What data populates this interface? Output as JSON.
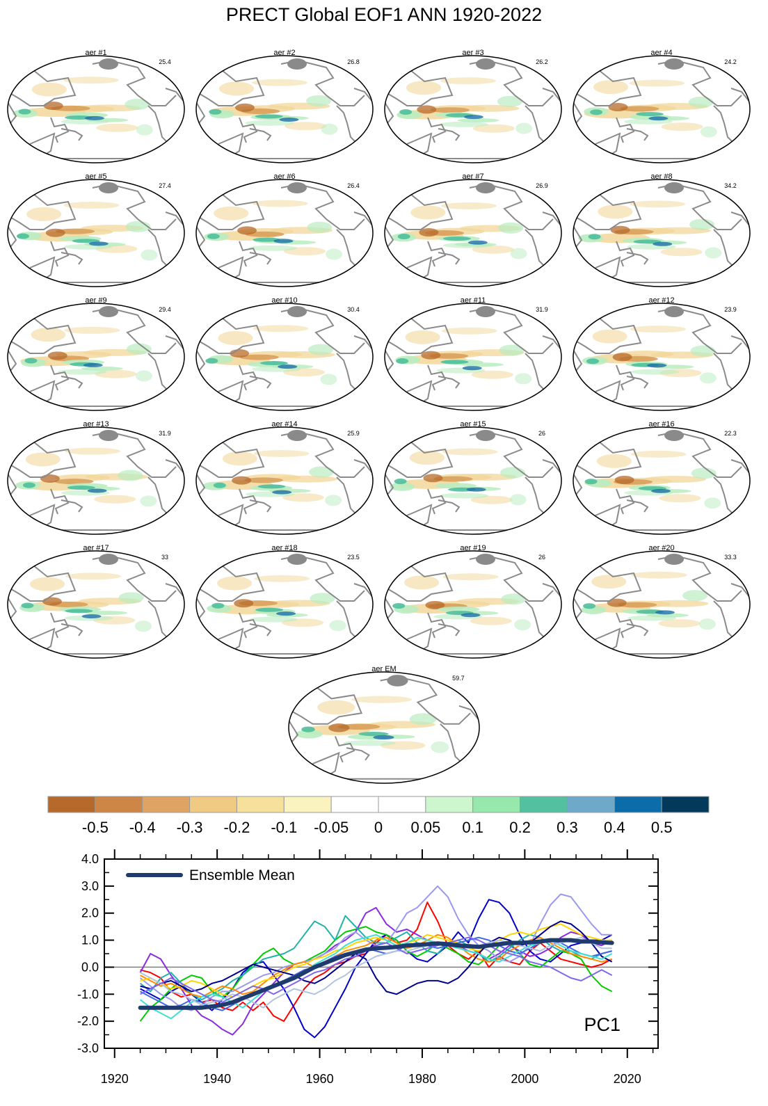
{
  "figure": {
    "title": "PRECT Global EOF1 ANN 1920-2022"
  },
  "colors": {
    "land": "#8a8a8a",
    "neg_strong": "#b7692a",
    "neg_mid": "#d9a05c",
    "neg_weak": "#f2d79a",
    "pos_weak": "#b9ecc0",
    "pos_mid": "#4fbf9c",
    "pos_strong": "#1d6fa8",
    "ensemble_mean": "#1e3a6e"
  },
  "maps": [
    {
      "label": "aer #1",
      "pct": "25.4"
    },
    {
      "label": "aer #2",
      "pct": "26.8"
    },
    {
      "label": "aer #3",
      "pct": "26.2"
    },
    {
      "label": "aer #4",
      "pct": "24.2"
    },
    {
      "label": "aer #5",
      "pct": "27.4"
    },
    {
      "label": "aer #6",
      "pct": "26.4"
    },
    {
      "label": "aer #7",
      "pct": "26.9"
    },
    {
      "label": "aer #8",
      "pct": "34.2"
    },
    {
      "label": "aer #9",
      "pct": "29.4"
    },
    {
      "label": "aer #10",
      "pct": "30.4"
    },
    {
      "label": "aer #11",
      "pct": "31.9"
    },
    {
      "label": "aer #12",
      "pct": "23.9"
    },
    {
      "label": "aer #13",
      "pct": "31.9"
    },
    {
      "label": "aer #14",
      "pct": "25.9"
    },
    {
      "label": "aer #15",
      "pct": "26"
    },
    {
      "label": "aer #16",
      "pct": "22.3"
    },
    {
      "label": "aer #17",
      "pct": "33"
    },
    {
      "label": "aer #18",
      "pct": "23.5"
    },
    {
      "label": "aer #19",
      "pct": "26"
    },
    {
      "label": "aer #20",
      "pct": "33.3"
    },
    {
      "label": "aer EM",
      "pct": "59.7"
    }
  ],
  "colorbar": {
    "colors": [
      "#b5692a",
      "#cd8645",
      "#dfa463",
      "#f0c983",
      "#f5e09c",
      "#faf2bf",
      "#ffffff",
      "#ffffff",
      "#cdf6cf",
      "#97e8ad",
      "#53c09f",
      "#6fa9c9",
      "#0c6ca9",
      "#033a5c"
    ],
    "labels": [
      "-0.5",
      "-0.4",
      "-0.3",
      "-0.2",
      "-0.1",
      "-0.05",
      "0",
      "0.05",
      "0.1",
      "0.2",
      "0.3",
      "0.4",
      "0.5"
    ]
  },
  "chart_data": {
    "type": "line",
    "title": "",
    "xlabel": "",
    "ylabel": "",
    "annotation": "PC1",
    "xlim": [
      1918,
      2026
    ],
    "ylim": [
      -3.0,
      4.0
    ],
    "x_ticks": [
      "1920",
      "1940",
      "1960",
      "1980",
      "2000",
      "2020"
    ],
    "y_ticks": [
      "-3.0",
      "-2.0",
      "-1.0",
      "0.0",
      "1.0",
      "2.0",
      "3.0",
      "4.0"
    ],
    "legend": {
      "placement": "top-left",
      "entries": [
        "Ensemble Mean"
      ]
    },
    "x": [
      1925,
      1927,
      1929,
      1931,
      1933,
      1935,
      1937,
      1939,
      1941,
      1943,
      1945,
      1947,
      1949,
      1951,
      1953,
      1955,
      1957,
      1959,
      1961,
      1963,
      1965,
      1967,
      1969,
      1971,
      1973,
      1975,
      1977,
      1979,
      1981,
      1983,
      1985,
      1987,
      1989,
      1991,
      1993,
      1995,
      1997,
      1999,
      2001,
      2003,
      2005,
      2007,
      2009,
      2011,
      2013,
      2015,
      2017
    ],
    "series": [
      {
        "name": "Ensemble Mean",
        "color": "#1e3a6e",
        "values": [
          -1.5,
          -1.5,
          -1.5,
          -1.5,
          -1.5,
          -1.5,
          -1.5,
          -1.45,
          -1.4,
          -1.3,
          -1.15,
          -1.0,
          -0.85,
          -0.7,
          -0.55,
          -0.4,
          -0.2,
          0.0,
          0.15,
          0.3,
          0.45,
          0.55,
          0.65,
          0.7,
          0.72,
          0.75,
          0.8,
          0.82,
          0.85,
          0.88,
          0.85,
          0.8,
          0.78,
          0.75,
          0.8,
          0.85,
          0.9,
          0.9,
          0.92,
          0.95,
          1.0,
          1.0,
          1.0,
          0.95,
          0.95,
          0.92,
          0.9
        ]
      },
      {
        "color": "#ff0000",
        "values": [
          -0.1,
          -0.2,
          -0.4,
          -0.9,
          -1.1,
          -1.0,
          -1.3,
          -1.2,
          -1.5,
          -1.6,
          -1.3,
          -1.6,
          -1.3,
          -1.8,
          -2.0,
          -1.4,
          -0.8,
          -0.4,
          -0.2,
          0.1,
          0.2,
          0.4,
          0.5,
          0.9,
          1.2,
          0.9,
          1.0,
          1.4,
          2.4,
          1.7,
          0.8,
          0.5,
          0.3,
          0.6,
          0.0,
          0.4,
          0.2,
          0.1,
          0.6,
          0.9,
          0.6,
          0.3,
          0.2,
          0.1,
          0.0,
          0.1,
          0.3
        ]
      },
      {
        "color": "#0000cc",
        "values": [
          -0.8,
          -1.0,
          -1.2,
          -0.9,
          -0.7,
          -1.0,
          -1.3,
          -1.6,
          -1.2,
          -0.8,
          -0.2,
          0.1,
          0.2,
          -0.3,
          -0.8,
          -1.5,
          -2.3,
          -2.6,
          -2.2,
          -1.5,
          -0.8,
          0.0,
          0.5,
          1.0,
          1.2,
          1.0,
          0.6,
          0.3,
          0.2,
          0.5,
          0.8,
          1.3,
          0.9,
          1.8,
          2.5,
          2.4,
          2.0,
          1.2,
          0.6,
          0.3,
          0.2,
          0.5,
          0.8,
          0.9,
          1.0,
          1.0,
          1.2
        ]
      },
      {
        "color": "#00cc00",
        "values": [
          -2.0,
          -1.5,
          -1.2,
          -0.8,
          -0.5,
          -0.3,
          -0.4,
          -0.9,
          -1.1,
          -0.8,
          -0.3,
          0.1,
          0.5,
          0.7,
          0.3,
          0.1,
          0.2,
          0.4,
          0.6,
          1.0,
          1.3,
          1.4,
          1.5,
          1.3,
          1.2,
          1.0,
          0.6,
          0.4,
          0.6,
          0.9,
          0.7,
          0.5,
          0.2,
          0.1,
          0.4,
          0.8,
          0.9,
          0.5,
          0.1,
          0.0,
          0.3,
          0.6,
          0.5,
          0.3,
          -0.3,
          -0.7,
          -0.9
        ]
      },
      {
        "color": "#8a2be2",
        "values": [
          -0.2,
          0.5,
          0.3,
          -0.3,
          -0.8,
          -1.4,
          -1.8,
          -2.0,
          -2.3,
          -2.5,
          -2.1,
          -1.4,
          -1.0,
          -0.6,
          -0.2,
          0.1,
          0.2,
          0.3,
          0.5,
          0.8,
          1.0,
          1.3,
          2.0,
          2.2,
          1.6,
          1.3,
          1.4,
          1.2,
          1.0,
          0.9,
          0.9,
          0.8,
          0.6,
          0.5,
          0.3,
          0.5,
          0.8,
          0.6,
          0.4,
          0.5,
          0.7,
          1.1,
          1.3,
          1.2,
          0.9,
          0.8,
          1.0
        ]
      },
      {
        "color": "#20b2aa",
        "values": [
          -0.6,
          -0.9,
          -0.4,
          -0.2,
          -0.6,
          -1.0,
          -1.2,
          -1.0,
          -0.8,
          -0.5,
          -0.3,
          0.0,
          0.3,
          0.4,
          0.5,
          0.7,
          1.2,
          1.7,
          1.5,
          1.0,
          1.9,
          1.5,
          1.1,
          0.9,
          0.9,
          1.1,
          1.3,
          0.9,
          0.6,
          0.5,
          0.9,
          1.0,
          0.8,
          0.5,
          0.2,
          0.4,
          0.7,
          1.0,
          1.2,
          1.1,
          0.8,
          0.6,
          0.6,
          0.4,
          0.3,
          0.5,
          0.6
        ]
      },
      {
        "color": "#9999ee",
        "values": [
          -0.4,
          -0.7,
          -1.0,
          -1.2,
          -1.5,
          -1.6,
          -1.4,
          -1.1,
          -0.9,
          -0.9,
          -0.7,
          -0.5,
          -0.3,
          -0.2,
          0.0,
          0.1,
          0.2,
          0.3,
          0.5,
          0.7,
          1.1,
          1.3,
          1.0,
          0.8,
          0.9,
          1.4,
          2.0,
          2.2,
          2.6,
          3.0,
          2.6,
          1.8,
          1.2,
          0.8,
          0.6,
          0.3,
          0.2,
          0.4,
          0.8,
          1.6,
          2.3,
          2.7,
          2.6,
          2.1,
          1.6,
          1.2,
          1.2
        ]
      },
      {
        "color": "#ff8c00",
        "values": [
          -0.3,
          -0.5,
          -0.7,
          -0.6,
          -0.8,
          -1.0,
          -1.1,
          -0.9,
          -0.7,
          -0.8,
          -1.0,
          -0.9,
          -0.6,
          -0.3,
          -0.1,
          0.1,
          0.2,
          0.0,
          0.2,
          0.4,
          0.6,
          0.7,
          0.8,
          1.0,
          1.1,
          0.9,
          0.7,
          0.8,
          1.0,
          1.2,
          1.1,
          0.8,
          0.5,
          0.3,
          0.2,
          0.3,
          0.6,
          0.8,
          1.0,
          1.1,
          0.9,
          0.7,
          0.5,
          0.4,
          0.3,
          0.2,
          0.3
        ]
      },
      {
        "color": "#ffd700",
        "values": [
          -0.5,
          -0.4,
          -0.6,
          -0.8,
          -0.7,
          -0.5,
          -0.6,
          -0.8,
          -1.0,
          -1.1,
          -0.9,
          -0.7,
          -0.5,
          -0.4,
          -0.2,
          0.0,
          0.1,
          0.3,
          0.4,
          0.6,
          0.7,
          0.9,
          1.0,
          1.1,
          1.0,
          0.8,
          0.9,
          1.0,
          1.2,
          1.1,
          1.0,
          0.9,
          0.7,
          0.6,
          0.8,
          1.0,
          1.2,
          1.3,
          1.2,
          1.4,
          1.5,
          1.6,
          1.4,
          1.2,
          1.1,
          1.0,
          1.0
        ]
      },
      {
        "color": "#00008b",
        "values": [
          -0.7,
          -0.8,
          -0.6,
          -0.5,
          -0.7,
          -0.9,
          -0.8,
          -0.6,
          -0.5,
          -0.3,
          -0.1,
          0.1,
          0.0,
          -0.1,
          -0.2,
          -0.3,
          -0.5,
          -0.6,
          -0.4,
          -0.1,
          0.2,
          0.5,
          0.3,
          -0.4,
          -0.9,
          -1.0,
          -0.8,
          -0.6,
          -0.5,
          -0.5,
          -0.6,
          -0.4,
          0.0,
          0.5,
          0.9,
          1.1,
          1.0,
          0.8,
          0.9,
          1.2,
          1.5,
          1.7,
          1.6,
          1.3,
          0.9,
          0.4,
          0.2
        ]
      },
      {
        "color": "#4169e1",
        "values": [
          -0.9,
          -1.1,
          -1.3,
          -1.5,
          -1.4,
          -1.2,
          -1.3,
          -1.5,
          -1.6,
          -1.4,
          -1.2,
          -1.0,
          -0.8,
          -0.7,
          -0.5,
          -0.3,
          -0.1,
          0.0,
          0.2,
          0.4,
          0.5,
          0.6,
          0.7,
          0.6,
          0.5,
          0.6,
          0.8,
          0.9,
          0.8,
          0.7,
          0.8,
          0.9,
          1.0,
          1.1,
          1.0,
          0.8,
          0.6,
          0.5,
          0.7,
          0.9,
          1.0,
          0.9,
          0.7,
          0.5,
          0.4,
          0.5,
          0.6
        ]
      },
      {
        "color": "#40e0d0",
        "values": [
          -1.2,
          -1.5,
          -1.7,
          -1.9,
          -1.6,
          -1.3,
          -1.1,
          -1.0,
          -1.1,
          -1.3,
          -1.5,
          -1.2,
          -0.9,
          -0.7,
          -0.6,
          -0.4,
          -0.2,
          0.1,
          0.3,
          0.5,
          0.8,
          1.0,
          1.1,
          1.2,
          1.0,
          0.8,
          0.9,
          1.1,
          1.0,
          0.9,
          0.8,
          0.7,
          0.6,
          0.5,
          0.3,
          0.2,
          0.4,
          0.6,
          0.8,
          0.9,
          1.0,
          0.8,
          0.6,
          0.5,
          0.4,
          0.3,
          0.5
        ]
      },
      {
        "color": "#b0c4de",
        "values": [
          -0.2,
          -0.4,
          -0.6,
          -0.9,
          -1.0,
          -1.2,
          -1.4,
          -1.3,
          -1.2,
          -1.0,
          -1.1,
          -1.3,
          -1.5,
          -1.2,
          -1.0,
          -0.8,
          -0.9,
          -1.0,
          -0.8,
          -0.5,
          -0.3,
          0.0,
          0.2,
          0.4,
          0.5,
          0.6,
          0.6,
          0.7,
          0.8,
          0.9,
          0.9,
          0.8,
          0.7,
          0.8,
          0.9,
          1.0,
          0.9,
          0.8,
          0.7,
          0.6,
          0.8,
          0.9,
          1.0,
          1.1,
          0.9,
          0.7,
          0.7
        ]
      },
      {
        "color": "#7b68ee",
        "values": [
          -1.0,
          -0.8,
          -0.6,
          -0.4,
          -0.6,
          -0.8,
          -1.0,
          -1.2,
          -1.3,
          -1.1,
          -0.9,
          -0.7,
          -0.8,
          -1.0,
          -0.8,
          -0.6,
          -0.4,
          -0.2,
          -0.1,
          0.1,
          0.3,
          0.4,
          0.6,
          0.8,
          0.9,
          0.7,
          0.5,
          0.6,
          0.7,
          0.8,
          0.9,
          1.0,
          1.1,
          1.0,
          0.8,
          0.6,
          0.5,
          0.4,
          0.2,
          0.1,
          0.0,
          -0.2,
          -0.4,
          -0.5,
          -0.3,
          -0.1,
          -0.3
        ]
      }
    ]
  }
}
